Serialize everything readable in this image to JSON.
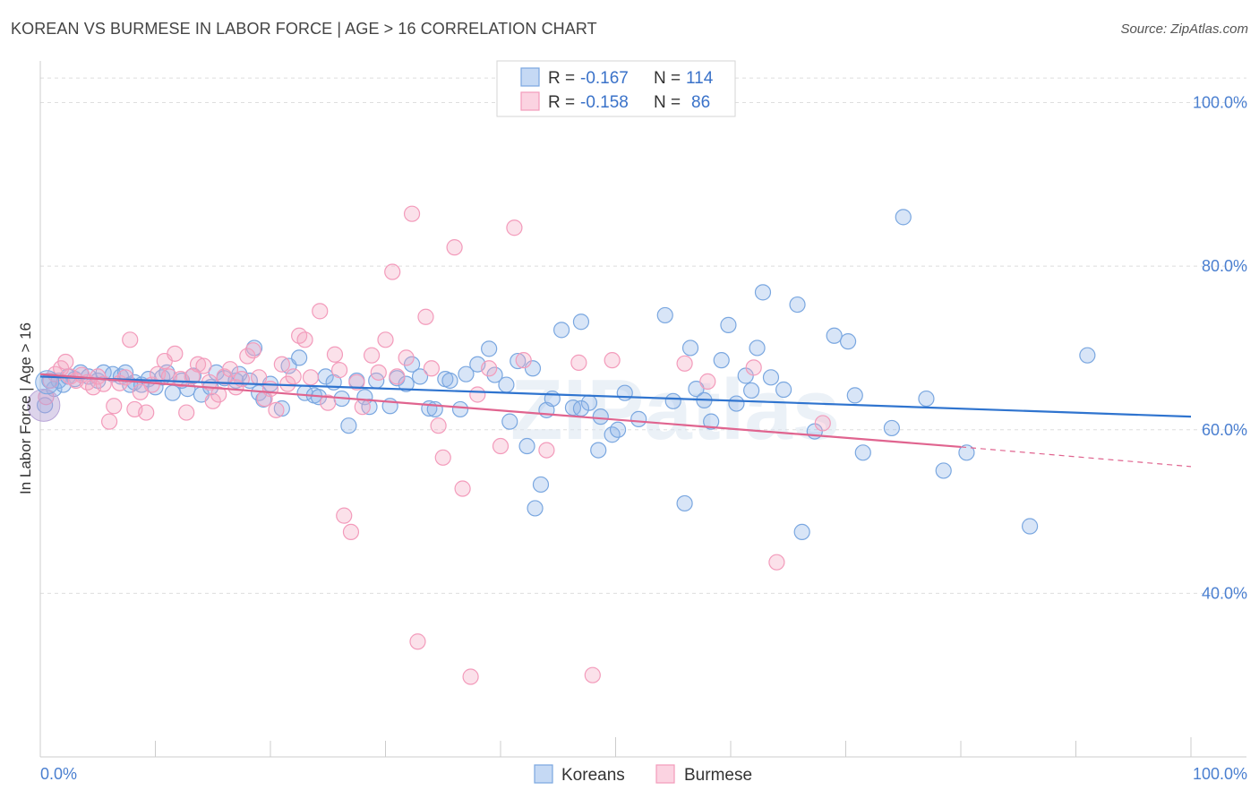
{
  "title": "KOREAN VS BURMESE IN LABOR FORCE | AGE > 16 CORRELATION CHART",
  "source": "Source: ZipAtlas.com",
  "watermark": "ZIPatlas",
  "legend": {
    "rows": [
      {
        "r_label": "R =",
        "r_value": "-0.167",
        "n_label": "N =",
        "n_value": "114",
        "color": "#8fb4e8"
      },
      {
        "r_label": "R =",
        "r_value": "-0.158",
        "n_label": "N =",
        "n_value": "86",
        "color": "#f4a9c3"
      }
    ]
  },
  "chart_data": {
    "type": "scatter",
    "title": "KOREAN VS BURMESE IN LABOR FORCE | AGE > 16 CORRELATION CHART",
    "xlabel": "",
    "ylabel": "In Labor Force | Age > 16",
    "xlim": [
      0,
      100
    ],
    "ylim": [
      20,
      104
    ],
    "x_tick_labels": [
      "0.0%",
      "100.0%"
    ],
    "y_ticks": [
      40,
      60,
      80,
      100
    ],
    "y_tick_labels": [
      "40.0%",
      "60.0%",
      "80.0%",
      "100.0%"
    ],
    "grid": "horizontal dashed",
    "legend_position": "top-center",
    "series": [
      {
        "name": "Koreans",
        "color": "#7aa7e0",
        "trend": {
          "x0": 0,
          "y0": 66.5,
          "x1": 100,
          "y1": 61.6,
          "color": "#2f74cf"
        },
        "points": [
          [
            0.4,
            63
          ],
          [
            0.8,
            66
          ],
          [
            1.2,
            65
          ],
          [
            1.6,
            66
          ],
          [
            2.0,
            65.5
          ],
          [
            2.4,
            66.5
          ],
          [
            3.0,
            66.2
          ],
          [
            3.5,
            67
          ],
          [
            4.2,
            66.5
          ],
          [
            5.0,
            66
          ],
          [
            5.5,
            67
          ],
          [
            6.3,
            66.8
          ],
          [
            7.0,
            66.5
          ],
          [
            7.4,
            67
          ],
          [
            7.8,
            65.5
          ],
          [
            8.2,
            65.8
          ],
          [
            8.8,
            65.5
          ],
          [
            9.4,
            66.2
          ],
          [
            10.0,
            65.2
          ],
          [
            10.6,
            66.4
          ],
          [
            11.0,
            67
          ],
          [
            11.5,
            64.5
          ],
          [
            12.3,
            66
          ],
          [
            12.8,
            65
          ],
          [
            13.3,
            66.6
          ],
          [
            14.0,
            64.3
          ],
          [
            14.8,
            65.2
          ],
          [
            15.3,
            67
          ],
          [
            16.0,
            66.3
          ],
          [
            17.0,
            66
          ],
          [
            17.3,
            66.8
          ],
          [
            18.2,
            66
          ],
          [
            18.6,
            70
          ],
          [
            19.0,
            64.5
          ],
          [
            19.4,
            63.7
          ],
          [
            20.0,
            65.6
          ],
          [
            21.0,
            62.6
          ],
          [
            21.6,
            67.8
          ],
          [
            22.5,
            68.8
          ],
          [
            23.0,
            64.5
          ],
          [
            23.8,
            64.2
          ],
          [
            24.2,
            64
          ],
          [
            24.8,
            66.5
          ],
          [
            25.5,
            65.8
          ],
          [
            26.2,
            63.8
          ],
          [
            26.8,
            60.5
          ],
          [
            27.5,
            66
          ],
          [
            28.2,
            64
          ],
          [
            28.6,
            62.8
          ],
          [
            29.2,
            66
          ],
          [
            30.4,
            62.9
          ],
          [
            31.0,
            66.3
          ],
          [
            31.8,
            65.6
          ],
          [
            32.3,
            68
          ],
          [
            33.0,
            66.5
          ],
          [
            33.8,
            62.6
          ],
          [
            34.3,
            62.5
          ],
          [
            35.2,
            66.2
          ],
          [
            35.6,
            66
          ],
          [
            36.5,
            62.5
          ],
          [
            37.0,
            66.8
          ],
          [
            38.0,
            68
          ],
          [
            39.0,
            69.9
          ],
          [
            39.5,
            66.7
          ],
          [
            40.5,
            65.5
          ],
          [
            40.8,
            61
          ],
          [
            41.5,
            68.4
          ],
          [
            42.3,
            58
          ],
          [
            42.8,
            67.5
          ],
          [
            43.5,
            53.3
          ],
          [
            44.0,
            62.4
          ],
          [
            44.5,
            63.8
          ],
          [
            45.3,
            72.2
          ],
          [
            46.3,
            62.7
          ],
          [
            47.0,
            73.2
          ],
          [
            47.7,
            63.3
          ],
          [
            48.5,
            57.5
          ],
          [
            48.7,
            61.6
          ],
          [
            49.7,
            59.4
          ],
          [
            50.2,
            60
          ],
          [
            50.8,
            64.5
          ],
          [
            52.0,
            61.3
          ],
          [
            54.3,
            74
          ],
          [
            55.0,
            63.5
          ],
          [
            56.0,
            51
          ],
          [
            56.5,
            70
          ],
          [
            57.0,
            65
          ],
          [
            57.7,
            63.6
          ],
          [
            58.3,
            61
          ],
          [
            59.2,
            68.5
          ],
          [
            59.8,
            72.8
          ],
          [
            60.5,
            63.2
          ],
          [
            61.3,
            66.6
          ],
          [
            61.8,
            64.8
          ],
          [
            62.3,
            70
          ],
          [
            62.8,
            76.8
          ],
          [
            63.5,
            66.4
          ],
          [
            64.6,
            64.9
          ],
          [
            65.8,
            75.3
          ],
          [
            66.2,
            47.5
          ],
          [
            67.3,
            59.8
          ],
          [
            69.0,
            71.5
          ],
          [
            70.2,
            70.8
          ],
          [
            70.8,
            64.2
          ],
          [
            71.5,
            57.2
          ],
          [
            74.0,
            60.2
          ],
          [
            75.0,
            86
          ],
          [
            77.0,
            63.8
          ],
          [
            78.5,
            55
          ],
          [
            80.5,
            57.2
          ],
          [
            86.0,
            48.2
          ],
          [
            91.0,
            69.1
          ],
          [
            47.0,
            62.6
          ],
          [
            43.0,
            50.4
          ]
        ]
      },
      {
        "name": "Burmese",
        "color": "#f39bbb",
        "trend": {
          "x0": 0,
          "y0": 66.8,
          "x1": 80,
          "y1": 57.9,
          "color": "#e0648f"
        },
        "dashed_extension": {
          "x0": 80,
          "y0": 57.9,
          "x1": 100,
          "y1": 55.5
        },
        "points": [
          [
            0.5,
            64
          ],
          [
            0.9,
            66
          ],
          [
            1.3,
            66.8
          ],
          [
            1.8,
            67.5
          ],
          [
            2.2,
            68.3
          ],
          [
            2.6,
            66.5
          ],
          [
            3.1,
            66
          ],
          [
            3.6,
            66.7
          ],
          [
            4.1,
            65.8
          ],
          [
            4.6,
            65.2
          ],
          [
            5.0,
            66.5
          ],
          [
            5.5,
            65.6
          ],
          [
            6.0,
            61
          ],
          [
            6.4,
            62.9
          ],
          [
            6.9,
            65.7
          ],
          [
            7.4,
            66.4
          ],
          [
            7.8,
            71
          ],
          [
            8.2,
            62.5
          ],
          [
            8.7,
            64.6
          ],
          [
            9.2,
            62.1
          ],
          [
            9.7,
            65.5
          ],
          [
            10.2,
            66.8
          ],
          [
            10.8,
            68.4
          ],
          [
            11.2,
            66.5
          ],
          [
            11.7,
            69.3
          ],
          [
            12.2,
            66.2
          ],
          [
            12.7,
            62.1
          ],
          [
            13.2,
            66.5
          ],
          [
            13.7,
            68
          ],
          [
            14.2,
            67.8
          ],
          [
            14.7,
            65.8
          ],
          [
            15.0,
            63.5
          ],
          [
            15.5,
            64.3
          ],
          [
            16.0,
            66.5
          ],
          [
            16.5,
            67.4
          ],
          [
            17.0,
            65.2
          ],
          [
            17.5,
            66.2
          ],
          [
            18.0,
            69
          ],
          [
            18.5,
            69.7
          ],
          [
            19.0,
            66.4
          ],
          [
            19.5,
            63.8
          ],
          [
            20.0,
            65
          ],
          [
            20.5,
            62.4
          ],
          [
            21.0,
            68
          ],
          [
            21.5,
            65.6
          ],
          [
            22.0,
            66.5
          ],
          [
            22.5,
            71.5
          ],
          [
            23.0,
            71
          ],
          [
            23.5,
            66.4
          ],
          [
            24.3,
            74.5
          ],
          [
            25.0,
            63.3
          ],
          [
            25.6,
            69.2
          ],
          [
            26.0,
            67.3
          ],
          [
            26.4,
            49.5
          ],
          [
            27.0,
            47.5
          ],
          [
            27.5,
            65.8
          ],
          [
            28.0,
            62.8
          ],
          [
            28.8,
            69.1
          ],
          [
            29.4,
            67
          ],
          [
            30.0,
            71
          ],
          [
            30.6,
            79.3
          ],
          [
            31.0,
            66.5
          ],
          [
            31.8,
            68.8
          ],
          [
            32.3,
            86.4
          ],
          [
            32.8,
            34.1
          ],
          [
            33.5,
            73.8
          ],
          [
            34.0,
            67.5
          ],
          [
            34.6,
            60.5
          ],
          [
            35.0,
            56.6
          ],
          [
            36.0,
            82.3
          ],
          [
            36.7,
            52.8
          ],
          [
            37.4,
            29.8
          ],
          [
            38.0,
            64.3
          ],
          [
            39.0,
            67.5
          ],
          [
            40.0,
            58
          ],
          [
            41.2,
            84.7
          ],
          [
            42.0,
            68.5
          ],
          [
            44.0,
            57.5
          ],
          [
            46.8,
            68.2
          ],
          [
            48.0,
            30
          ],
          [
            49.7,
            68.5
          ],
          [
            56.0,
            68.1
          ],
          [
            58.0,
            65.9
          ],
          [
            62.0,
            67.6
          ],
          [
            64.0,
            43.8
          ],
          [
            68.0,
            60.8
          ]
        ]
      }
    ]
  }
}
